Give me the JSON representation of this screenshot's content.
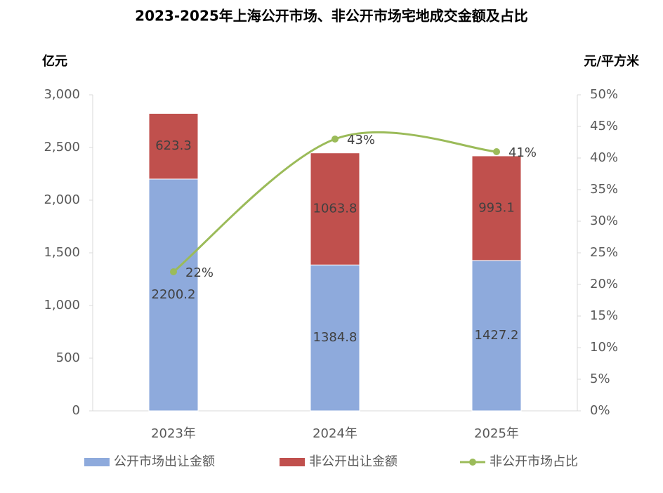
{
  "chart_data": {
    "type": "bar",
    "stacked": true,
    "title": "2023-2025年上海公开市场、非公开市场宅地成交金额及占比",
    "y_label": "亿元",
    "y2_label": "元/平方米",
    "categories": [
      "2023年",
      "2024年",
      "2025年"
    ],
    "series": [
      {
        "name": "公开市场出让金额",
        "color": "#8eaadc",
        "values": [
          2200.2,
          1384.8,
          1427.2
        ]
      },
      {
        "name": "非公开出让金额",
        "color": "#c0504d",
        "values": [
          623.3,
          1063.8,
          993.1
        ]
      },
      {
        "name": "非公开市场占比",
        "type": "line",
        "axis": "y2",
        "color": "#9bbb59",
        "values": [
          22,
          43,
          41
        ],
        "value_labels": [
          "22%",
          "43%",
          "41%"
        ]
      }
    ],
    "ylim": [
      0,
      3000
    ],
    "yticks": [
      0,
      {
        "value": 500,
        "label": "500"
      },
      {
        "value": 1000,
        "label": "1,000"
      },
      {
        "value": 1500,
        "label": "1,500"
      },
      {
        "value": 2000,
        "label": "2,000"
      },
      {
        "value": 2500,
        "label": "2,500"
      },
      {
        "value": 3000,
        "label": "3,000"
      }
    ],
    "y2lim": [
      0,
      50
    ],
    "y2ticks": [
      {
        "value": 0,
        "label": "0%"
      },
      {
        "value": 5,
        "label": "5%"
      },
      {
        "value": 10,
        "label": "10%"
      },
      {
        "value": 15,
        "label": "15%"
      },
      {
        "value": 20,
        "label": "20%"
      },
      {
        "value": 25,
        "label": "25%"
      },
      {
        "value": 30,
        "label": "30%"
      },
      {
        "value": 35,
        "label": "35%"
      },
      {
        "value": 40,
        "label": "40%"
      },
      {
        "value": 45,
        "label": "45%"
      },
      {
        "value": 50,
        "label": "50%"
      }
    ],
    "legend": "bottom"
  }
}
